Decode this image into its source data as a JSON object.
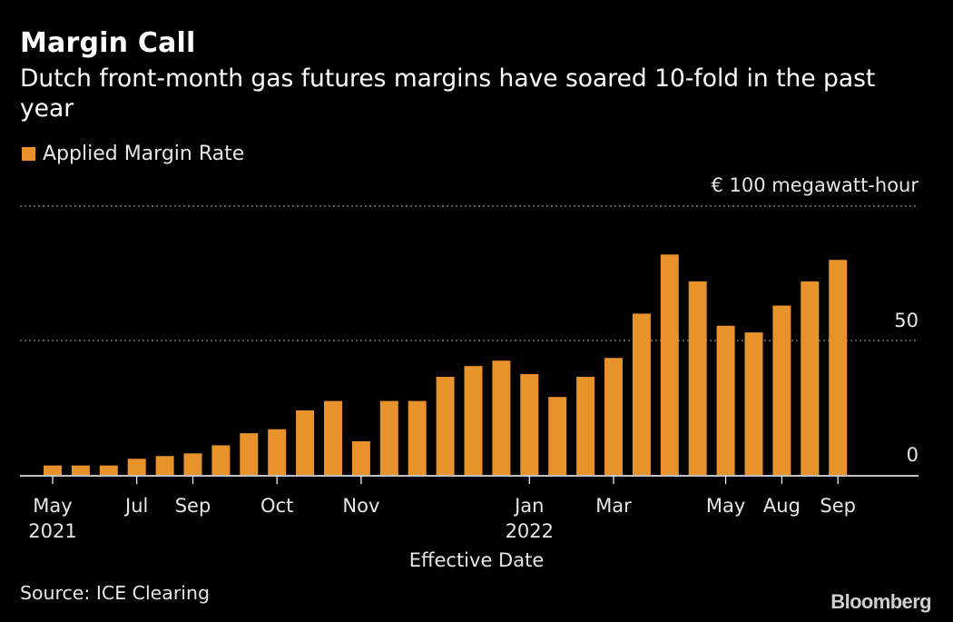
{
  "header": {
    "title": "Margin Call",
    "subtitle": "Dutch front-month gas futures margins have soared 10-fold in the past year"
  },
  "footer": {
    "source": "Source: ICE Clearing",
    "brand": "Bloomberg"
  },
  "colors": {
    "background": "#000000",
    "bar": "#e8922c",
    "text": "#ffffff",
    "gridline": "#8a8a8a"
  },
  "chart_data": {
    "type": "bar",
    "legend": {
      "position": "top-left",
      "entries": [
        "Applied Margin Rate"
      ]
    },
    "unit_label": "€ 100  megawatt-hour",
    "xlabel": "Effective Date",
    "ylim": [
      0,
      100
    ],
    "y_ticks": [
      0,
      50,
      100
    ],
    "y_tick_labels": [
      "0",
      "50",
      ""
    ],
    "grid": true,
    "x_tick_labels": [
      {
        "bar_index": 0,
        "label": "May",
        "sublabel": "2021"
      },
      {
        "bar_index": 3,
        "label": "Jul",
        "sublabel": ""
      },
      {
        "bar_index": 5,
        "label": "Sep",
        "sublabel": ""
      },
      {
        "bar_index": 8,
        "label": "Oct",
        "sublabel": ""
      },
      {
        "bar_index": 11,
        "label": "Nov",
        "sublabel": ""
      },
      {
        "bar_index": 17,
        "label": "Jan",
        "sublabel": "2022"
      },
      {
        "bar_index": 20,
        "label": "Mar",
        "sublabel": ""
      },
      {
        "bar_index": 24,
        "label": "May",
        "sublabel": ""
      },
      {
        "bar_index": 26,
        "label": "Aug",
        "sublabel": ""
      },
      {
        "bar_index": 28,
        "label": "Sep",
        "sublabel": ""
      }
    ],
    "series": [
      {
        "name": "Applied Margin Rate",
        "values": [
          3.5,
          3.5,
          3.5,
          6,
          7,
          8,
          11,
          15.5,
          17,
          24,
          27.5,
          12.5,
          27.5,
          27.5,
          36.5,
          40.5,
          42.5,
          37.5,
          29,
          36.5,
          43.5,
          60,
          82,
          72,
          55.5,
          53,
          63,
          72,
          80
        ]
      }
    ]
  }
}
